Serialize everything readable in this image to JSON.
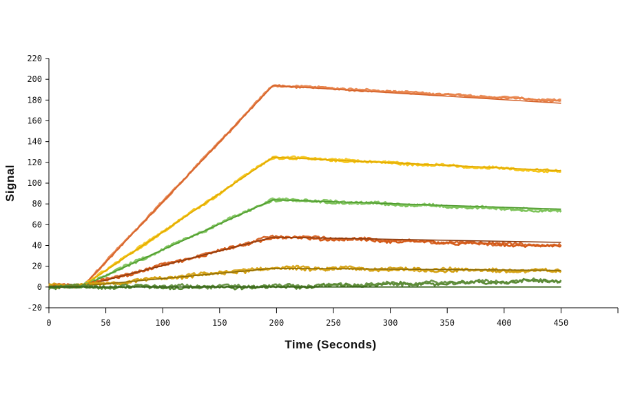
{
  "chart_data": {
    "type": "line",
    "title": "",
    "xlabel": "Time  (Seconds)",
    "ylabel": "Signal",
    "xlim": [
      0,
      500
    ],
    "ylim": [
      -20,
      220
    ],
    "xticks": [
      0,
      50,
      100,
      150,
      200,
      250,
      300,
      350,
      400,
      450
    ],
    "yticks": [
      -20,
      0,
      20,
      40,
      60,
      80,
      100,
      120,
      140,
      160,
      180,
      200,
      220
    ],
    "grid": false,
    "legend": "none",
    "association_start": 30,
    "dissociation_start": 197,
    "end_time": 450,
    "series": [
      {
        "color": "#E8834A",
        "fit_color": "#D4622A",
        "points": [
          [
            0,
            1
          ],
          [
            30,
            1
          ],
          [
            197,
            194
          ],
          [
            450,
            177
          ]
        ],
        "measured_end": 179
      },
      {
        "color": "#F5C518",
        "fit_color": "#E0A800",
        "points": [
          [
            0,
            1
          ],
          [
            30,
            1
          ],
          [
            197,
            125
          ],
          [
            450,
            112
          ]
        ],
        "measured_end": 111
      },
      {
        "color": "#7DC35A",
        "fit_color": "#4E9A2E",
        "points": [
          [
            0,
            1
          ],
          [
            30,
            1
          ],
          [
            197,
            84
          ],
          [
            450,
            75
          ]
        ],
        "measured_end": 73
      },
      {
        "color": "#D45A18",
        "fit_color": "#8B3A0E",
        "points": [
          [
            0,
            1
          ],
          [
            30,
            1
          ],
          [
            197,
            48
          ],
          [
            450,
            43
          ]
        ],
        "measured_end": 39
      },
      {
        "color": "#D4A010",
        "fit_color": "#8B6A08",
        "points": [
          [
            0,
            1
          ],
          [
            30,
            1
          ],
          [
            197,
            18
          ],
          [
            450,
            16
          ]
        ],
        "measured_end": 15
      },
      {
        "color": "#5A8A35",
        "fit_color": "#2E5A12",
        "points": [
          [
            0,
            0
          ],
          [
            30,
            0
          ],
          [
            197,
            0
          ],
          [
            450,
            0
          ]
        ],
        "measured_end": 6
      }
    ]
  }
}
